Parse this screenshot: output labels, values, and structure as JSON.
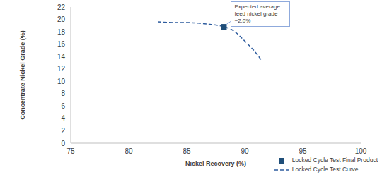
{
  "chart_data": {
    "type": "scatter",
    "x_label": "Nickel Recovery (%)",
    "y_label": "Concentrate Nickel Grade (%)",
    "xlim": [
      75,
      100
    ],
    "xticks": [
      75,
      80,
      85,
      90,
      95,
      100
    ],
    "ylim": [
      0,
      22
    ],
    "yticks": [
      0,
      2,
      4,
      6,
      8,
      10,
      12,
      14,
      16,
      18,
      20,
      22
    ],
    "grid": false,
    "legend": "bottom right",
    "series": [
      {
        "name": "Locked Cycle Test Final Product",
        "type": "scatter",
        "marker": "square",
        "color": "#1f4e79",
        "x": [
          88.2
        ],
        "values": [
          18.8
        ]
      },
      {
        "name": "Locked Cycle Test Curve",
        "type": "line",
        "line_style": "dashed",
        "color": "#2e5c9e",
        "x": [
          82.5,
          84,
          85,
          86,
          87,
          88,
          89,
          90,
          91,
          91.4
        ],
        "values": [
          19.6,
          19.5,
          19.5,
          19.4,
          19.2,
          18.9,
          18.2,
          16.5,
          14.5,
          13.5
        ]
      }
    ],
    "annotations": [
      {
        "text": "Expected average feed nickel grade ~2.0%",
        "x": 88.2,
        "y": 18.8
      }
    ]
  }
}
